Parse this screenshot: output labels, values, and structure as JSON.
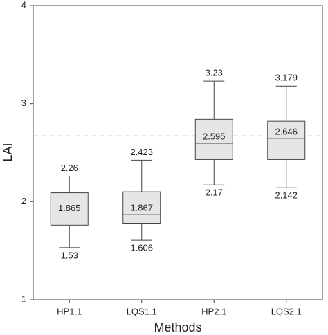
{
  "chart_data": {
    "type": "box",
    "xlabel": "Methods",
    "ylabel": "LAI",
    "categories": [
      "HP1.1",
      "LQS1.1",
      "HP2.1",
      "LQS2.1"
    ],
    "boxes": [
      {
        "min": 1.53,
        "q1": 1.76,
        "median": 1.865,
        "q3": 2.09,
        "max": 2.26
      },
      {
        "min": 1.606,
        "q1": 1.78,
        "median": 1.867,
        "q3": 2.1,
        "max": 2.423
      },
      {
        "min": 2.17,
        "q1": 2.43,
        "median": 2.595,
        "q3": 2.84,
        "max": 3.23
      },
      {
        "min": 2.142,
        "q1": 2.43,
        "median": 2.646,
        "q3": 2.82,
        "max": 3.179
      }
    ],
    "color": "#e6e6e6",
    "reference_line": 2.67,
    "ylim": [
      1,
      4
    ],
    "yticks": [
      1,
      2,
      3,
      4
    ]
  }
}
